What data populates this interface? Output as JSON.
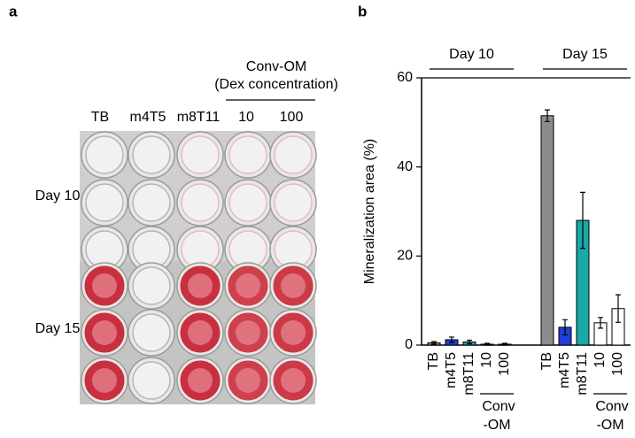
{
  "panel_a": {
    "label": "a",
    "columns": [
      "TB",
      "m4T5",
      "m8T11",
      "10",
      "100"
    ],
    "group_header": {
      "title": "Conv-OM",
      "subtitle": "(Dex concentration)"
    },
    "rows": [
      "Day 10",
      "Day 15"
    ]
  },
  "chart_data": {
    "type": "bar",
    "panel_label": "b",
    "ylabel": "Mineralization area (%)",
    "ylim": [
      0,
      60
    ],
    "yticks": [
      0,
      20,
      40,
      60
    ],
    "groups": [
      {
        "label": "Day 10",
        "categories": [
          "TB",
          "m4T5",
          "m8T11",
          "10",
          "100"
        ],
        "values": [
          0.5,
          1.2,
          0.7,
          0.2,
          0.2
        ],
        "errors": [
          0.3,
          0.6,
          0.4,
          0.2,
          0.2
        ],
        "colors": [
          "#8c8c8c",
          "#1f3fd9",
          "#1aa8a8",
          "#ffffff",
          "#ffffff"
        ],
        "bracket_label": [
          "Conv",
          "-OM"
        ]
      },
      {
        "label": "Day 15",
        "categories": [
          "TB",
          "m4T5",
          "m8T11",
          "10",
          "100"
        ],
        "values": [
          51.5,
          4,
          28,
          5,
          8.2
        ],
        "errors": [
          1.3,
          1.7,
          6.3,
          1.2,
          3.1
        ],
        "colors": [
          "#8c8c8c",
          "#1f3fd9",
          "#1aa8a8",
          "#ffffff",
          "#ffffff"
        ],
        "bracket_label": [
          "Conv",
          "-OM"
        ]
      }
    ]
  }
}
